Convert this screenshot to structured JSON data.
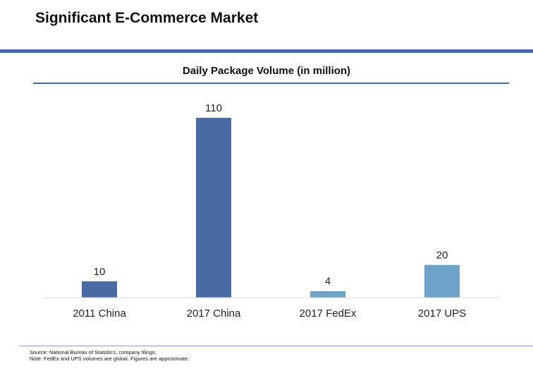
{
  "title": "Significant E-Commerce Market",
  "colors": {
    "accent": "#4a6aa5",
    "bar_dark": "#4a6aa5",
    "bar_light": "#6fa2c7"
  },
  "chart_data": {
    "type": "bar",
    "title": "Daily Package Volume (in million)",
    "categories": [
      "2011 China",
      "2017 China",
      "2017 FedEx",
      "2017 UPS"
    ],
    "values": [
      10,
      110,
      4,
      20
    ],
    "data_labels": [
      "10",
      "110",
      "4",
      "20"
    ],
    "bar_colors": [
      "#4a6aa5",
      "#4a6aa5",
      "#6fa2c7",
      "#6fa2c7"
    ],
    "xlabel": "",
    "ylabel": "",
    "ylim": [
      0,
      110
    ],
    "grid": false,
    "legend": "none"
  },
  "footnotes": {
    "source": "Source: National Bureau of Statistics, company filings.",
    "note": "Note:  FedEx and UPS volumes are global.  Figures are approximate."
  }
}
